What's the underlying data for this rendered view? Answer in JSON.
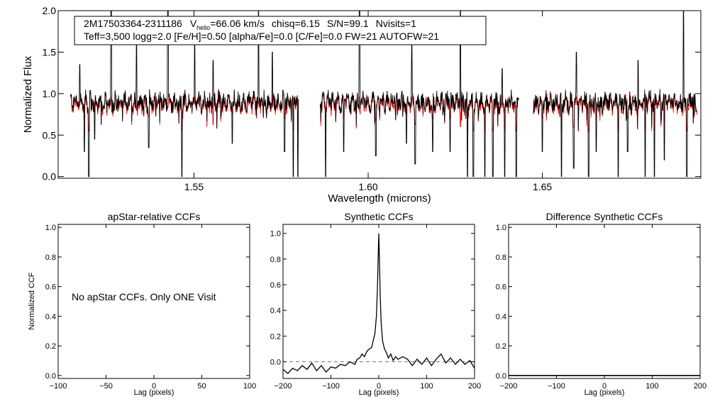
{
  "chart_data": [
    {
      "type": "line",
      "id": "spectrum",
      "info_line1": {
        "star": "2M17503364-2311186",
        "v_prefix": "V",
        "v_sub": "helio",
        "v_value": "=66.06 km/s",
        "chisq": "chisq=6.15",
        "snr": "S/N=99.1",
        "nvisits": "Nvisits=1"
      },
      "info_line2": "Teff=3,500 logg=2.0 [Fe/H]=0.50 [alpha/Fe]=0.0 [C/Fe]=0.0 FW=21 AUTOFW=21",
      "xlabel": "Wavelength (microns)",
      "ylabel": "Normalized Flux",
      "xlim": [
        1.511,
        1.6955
      ],
      "ylim": [
        -0.02,
        2.0
      ],
      "xticks": [
        {
          "value": 1.55,
          "label": "1.55"
        },
        {
          "value": 1.6,
          "label": "1.60"
        },
        {
          "value": 1.65,
          "label": "1.65"
        }
      ],
      "yticks": [
        {
          "value": 0.0,
          "label": "0.0"
        },
        {
          "value": 0.5,
          "label": "0.5"
        },
        {
          "value": 1.0,
          "label": "1.0"
        },
        {
          "value": 1.5,
          "label": "1.5"
        },
        {
          "value": 2.0,
          "label": "2.0"
        }
      ],
      "chip_ranges": [
        [
          1.5145,
          1.58
        ],
        [
          1.5862,
          1.6433
        ],
        [
          1.6474,
          1.6945
        ]
      ],
      "series": [
        {
          "name": "observed spectrum",
          "color": "#000000"
        },
        {
          "name": "synthetic fit",
          "color": "#ff0000"
        }
      ],
      "spikes_up": [
        {
          "x": 1.5262,
          "y": 2.0
        },
        {
          "x": 1.5425,
          "y": 2.0
        },
        {
          "x": 1.5685,
          "y": 2.0
        },
        {
          "x": 1.5975,
          "y": 2.0
        },
        {
          "x": 1.6265,
          "y": 2.0
        },
        {
          "x": 1.6905,
          "y": 2.0
        },
        {
          "x": 1.5172,
          "y": 1.35
        },
        {
          "x": 1.5335,
          "y": 1.6
        },
        {
          "x": 1.5502,
          "y": 1.6
        },
        {
          "x": 1.5555,
          "y": 1.4
        },
        {
          "x": 1.5725,
          "y": 1.5
        },
        {
          "x": 1.6125,
          "y": 1.6
        },
        {
          "x": 1.6385,
          "y": 1.3
        },
        {
          "x": 1.6598,
          "y": 1.5
        },
        {
          "x": 1.6775,
          "y": 1.4
        }
      ],
      "dips": [
        {
          "x": 1.513,
          "y": 0.0
        },
        {
          "x": 1.5198,
          "y": 0.0
        },
        {
          "x": 1.5465,
          "y": 0.0
        },
        {
          "x": 1.5785,
          "y": 0.0
        },
        {
          "x": 1.5798,
          "y": 0.0
        },
        {
          "x": 1.5878,
          "y": 0.0
        },
        {
          "x": 1.6285,
          "y": 0.0
        },
        {
          "x": 1.6302,
          "y": 0.0
        },
        {
          "x": 1.6335,
          "y": 0.0
        },
        {
          "x": 1.6358,
          "y": 0.0
        },
        {
          "x": 1.6392,
          "y": 0.0
        },
        {
          "x": 1.6425,
          "y": 0.0
        },
        {
          "x": 1.6555,
          "y": 0.0
        },
        {
          "x": 1.6633,
          "y": 0.0
        },
        {
          "x": 1.6718,
          "y": 0.0
        },
        {
          "x": 1.6795,
          "y": 0.0
        },
        {
          "x": 1.6822,
          "y": 0.0
        },
        {
          "x": 1.6915,
          "y": 0.0
        },
        {
          "x": 1.5185,
          "y": 0.3
        },
        {
          "x": 1.5215,
          "y": 0.45
        },
        {
          "x": 1.537,
          "y": 0.35
        },
        {
          "x": 1.5555,
          "y": 0.15
        },
        {
          "x": 1.561,
          "y": 0.4
        },
        {
          "x": 1.576,
          "y": 0.3
        },
        {
          "x": 1.593,
          "y": 0.3
        },
        {
          "x": 1.6022,
          "y": 0.25
        },
        {
          "x": 1.611,
          "y": 0.4
        },
        {
          "x": 1.6135,
          "y": 0.15
        },
        {
          "x": 1.6185,
          "y": 0.3
        },
        {
          "x": 1.6235,
          "y": 0.3
        },
        {
          "x": 1.6265,
          "y": 0.1
        },
        {
          "x": 1.65,
          "y": 0.3
        },
        {
          "x": 1.659,
          "y": 0.1
        },
        {
          "x": 1.6655,
          "y": 0.3
        },
        {
          "x": 1.6745,
          "y": 0.3
        },
        {
          "x": 1.685,
          "y": 0.2
        }
      ]
    },
    {
      "type": "line",
      "id": "apstar_ccf",
      "title": "apStar-relative CCFs",
      "xlabel": "Lag (pixels)",
      "ylabel": "Normalized CCF",
      "xlim": [
        -100,
        100
      ],
      "ylim": [
        -0.02,
        1.02
      ],
      "xticks": [
        {
          "value": -100,
          "label": "−100"
        },
        {
          "value": -50,
          "label": "−50"
        },
        {
          "value": 0,
          "label": "0"
        },
        {
          "value": 50,
          "label": "50"
        },
        {
          "value": 100,
          "label": "100"
        }
      ],
      "yticks": [
        {
          "value": 0.0,
          "label": "0.0"
        },
        {
          "value": 0.2,
          "label": "0.2"
        },
        {
          "value": 0.4,
          "label": "0.4"
        },
        {
          "value": 0.6,
          "label": "0.6"
        },
        {
          "value": 0.8,
          "label": "0.8"
        },
        {
          "value": 1.0,
          "label": "1.0"
        }
      ],
      "annotation": "No apStar CCFs.  Only ONE Visit",
      "points": []
    },
    {
      "type": "line",
      "id": "synthetic_ccf",
      "title": "Synthetic CCFs",
      "xlabel": "Lag (pixels)",
      "xlim": [
        -200,
        200
      ],
      "ylim": [
        -0.13,
        1.07
      ],
      "xticks": [
        {
          "value": -200,
          "label": "−200"
        },
        {
          "value": -100,
          "label": "−100"
        },
        {
          "value": 0,
          "label": "0"
        },
        {
          "value": 100,
          "label": "100"
        },
        {
          "value": 200,
          "label": "200"
        }
      ],
      "yticks": [
        {
          "value": 0.0,
          "label": "0.0"
        },
        {
          "value": 0.2,
          "label": "0.2"
        },
        {
          "value": 0.4,
          "label": "0.4"
        },
        {
          "value": 0.6,
          "label": "0.6"
        },
        {
          "value": 0.8,
          "label": "0.8"
        },
        {
          "value": 1.0,
          "label": "1.0"
        }
      ],
      "zero_line": 0.0,
      "points": [
        [
          -200,
          -0.06
        ],
        [
          -190,
          -0.09
        ],
        [
          -180,
          -0.05
        ],
        [
          -170,
          -0.07
        ],
        [
          -160,
          -0.03
        ],
        [
          -150,
          -0.06
        ],
        [
          -140,
          -0.01
        ],
        [
          -130,
          -0.07
        ],
        [
          -120,
          -0.03
        ],
        [
          -110,
          -0.08
        ],
        [
          -100,
          -0.04
        ],
        [
          -90,
          -0.05
        ],
        [
          -80,
          -0.02
        ],
        [
          -70,
          -0.03
        ],
        [
          -60,
          0.0
        ],
        [
          -50,
          -0.02
        ],
        [
          -45,
          0.02
        ],
        [
          -40,
          0.03
        ],
        [
          -35,
          0.06
        ],
        [
          -30,
          0.04
        ],
        [
          -25,
          0.08
        ],
        [
          -20,
          0.1
        ],
        [
          -15,
          0.11
        ],
        [
          -12,
          0.16
        ],
        [
          -8,
          0.22
        ],
        [
          -5,
          0.35
        ],
        [
          -3,
          0.55
        ],
        [
          -1,
          0.85
        ],
        [
          0,
          1.0
        ],
        [
          1,
          0.85
        ],
        [
          3,
          0.52
        ],
        [
          5,
          0.3
        ],
        [
          8,
          0.16
        ],
        [
          12,
          0.1
        ],
        [
          16,
          0.07
        ],
        [
          20,
          0.03
        ],
        [
          25,
          0.06
        ],
        [
          30,
          0.01
        ],
        [
          35,
          0.04
        ],
        [
          40,
          0.02
        ],
        [
          50,
          0.04
        ],
        [
          60,
          0.02
        ],
        [
          70,
          -0.03
        ],
        [
          80,
          0.02
        ],
        [
          90,
          -0.02
        ],
        [
          100,
          0.03
        ],
        [
          110,
          -0.03
        ],
        [
          120,
          0.02
        ],
        [
          130,
          0.06
        ],
        [
          140,
          -0.01
        ],
        [
          150,
          0.03
        ],
        [
          160,
          -0.02
        ],
        [
          170,
          0.02
        ],
        [
          180,
          -0.02
        ],
        [
          190,
          0.01
        ],
        [
          200,
          -0.05
        ]
      ]
    },
    {
      "type": "line",
      "id": "difference_ccf",
      "title": "Difference Synthetic CCFs",
      "xlabel": "Lag (pixels)",
      "xlim": [
        -200,
        200
      ],
      "ylim": [
        -0.02,
        1.02
      ],
      "xticks": [
        {
          "value": -200,
          "label": "−200"
        },
        {
          "value": -100,
          "label": "−100"
        },
        {
          "value": 0,
          "label": "0"
        },
        {
          "value": 100,
          "label": "100"
        },
        {
          "value": 200,
          "label": "200"
        }
      ],
      "yticks": [
        {
          "value": 0.0,
          "label": "0.0"
        },
        {
          "value": 0.2,
          "label": "0.2"
        },
        {
          "value": 0.4,
          "label": "0.4"
        },
        {
          "value": 0.6,
          "label": "0.6"
        },
        {
          "value": 0.8,
          "label": "0.8"
        },
        {
          "value": 1.0,
          "label": "1.0"
        }
      ],
      "points": [
        [
          -200,
          0.0
        ],
        [
          200,
          0.0
        ]
      ]
    }
  ]
}
